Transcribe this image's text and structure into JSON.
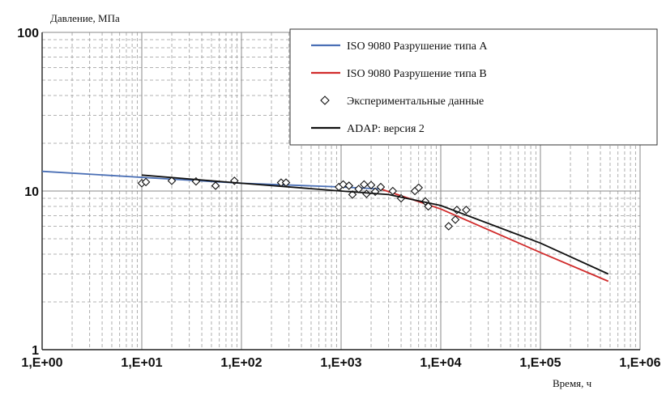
{
  "chart_data": {
    "type": "line",
    "ylabel": "Давление, МПа",
    "xlabel": "Время, ч",
    "x_scale": "log",
    "y_scale": "log",
    "xlim": [
      1,
      1000000
    ],
    "ylim": [
      1,
      100
    ],
    "x_ticks": [
      {
        "value": 1,
        "label": "1,E+00"
      },
      {
        "value": 10,
        "label": "1,E+01"
      },
      {
        "value": 100,
        "label": "1,E+02"
      },
      {
        "value": 1000,
        "label": "1,E+03"
      },
      {
        "value": 10000,
        "label": "1,E+04"
      },
      {
        "value": 100000,
        "label": "1,E+05"
      },
      {
        "value": 1000000,
        "label": "1,E+06"
      }
    ],
    "y_ticks": [
      {
        "value": 1,
        "label": "1"
      },
      {
        "value": 10,
        "label": "10"
      },
      {
        "value": 100,
        "label": "100"
      }
    ],
    "grid": true,
    "legend_position": "top-right",
    "series": [
      {
        "name": "ISO 9080 Разрушение типа A",
        "kind": "line",
        "color": "#4a6fb5",
        "points": [
          [
            1,
            13.3
          ],
          [
            10,
            12.2
          ],
          [
            100,
            11.2
          ],
          [
            1000,
            10.6
          ],
          [
            2500,
            10.3
          ]
        ]
      },
      {
        "name": "ISO 9080 Разрушение типа B",
        "kind": "line",
        "color": "#d12b2b",
        "points": [
          [
            2500,
            10.3
          ],
          [
            5000,
            8.9
          ],
          [
            10000,
            7.7
          ],
          [
            100000,
            4.1
          ],
          [
            480000,
            2.7
          ]
        ]
      },
      {
        "name": "Экспериментальные данные",
        "kind": "scatter",
        "marker": "diamond",
        "color": "#111111",
        "points": [
          [
            10,
            11.2
          ],
          [
            11,
            11.4
          ],
          [
            20,
            11.6
          ],
          [
            35,
            11.5
          ],
          [
            55,
            10.8
          ],
          [
            85,
            11.6
          ],
          [
            250,
            11.3
          ],
          [
            280,
            11.3
          ],
          [
            950,
            10.6
          ],
          [
            1050,
            11.0
          ],
          [
            1200,
            10.8
          ],
          [
            1300,
            9.5
          ],
          [
            1500,
            10.3
          ],
          [
            1700,
            11.0
          ],
          [
            1800,
            9.6
          ],
          [
            2000,
            10.9
          ],
          [
            2200,
            9.9
          ],
          [
            2500,
            10.6
          ],
          [
            3300,
            10.0
          ],
          [
            4000,
            9.0
          ],
          [
            5500,
            10.0
          ],
          [
            6000,
            10.5
          ],
          [
            7000,
            8.6
          ],
          [
            7500,
            8.0
          ],
          [
            12000,
            6.0
          ],
          [
            14000,
            6.6
          ],
          [
            14500,
            7.6
          ],
          [
            18000,
            7.6
          ]
        ]
      },
      {
        "name": "ADAP: версия 2",
        "kind": "line",
        "color": "#111111",
        "points": [
          [
            10,
            12.6
          ],
          [
            100,
            11.2
          ],
          [
            1000,
            10.0
          ],
          [
            3000,
            9.5
          ],
          [
            10000,
            8.1
          ],
          [
            100000,
            4.7
          ],
          [
            480000,
            3.0
          ]
        ]
      }
    ]
  }
}
